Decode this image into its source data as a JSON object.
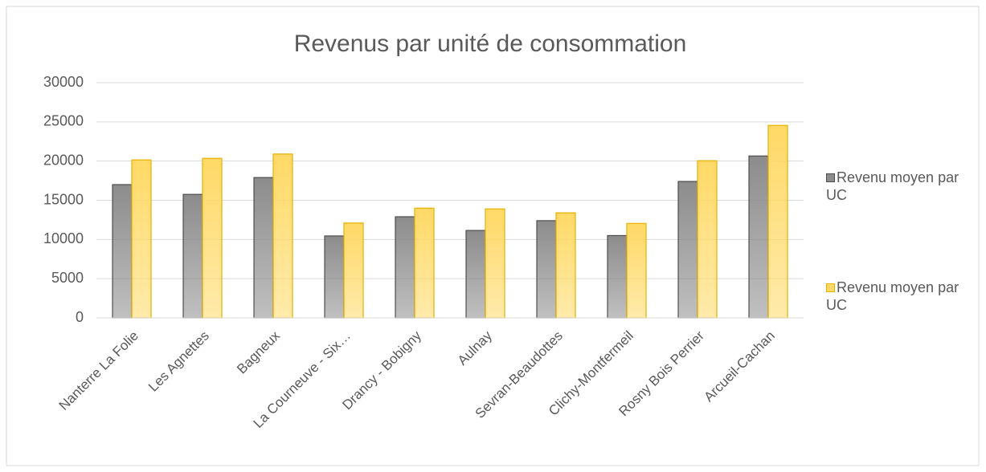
{
  "chart_data": {
    "type": "bar",
    "title": "Revenus par unité de consommation",
    "categories": [
      "Nanterre La Folie",
      "Les Agnettes",
      "Bagneux",
      "La Courneuve - Six…",
      "Drancy - Bobigny",
      "Aulnay",
      "Sevran-Beaudottes",
      "Clichy-Montfermeil",
      "Rosny Bois Perrier",
      "Arcueil-Cachan"
    ],
    "series": [
      {
        "name": "Revenu moyen par UC",
        "color": "#8c8c8c",
        "edgecolor": "#4d4d4d",
        "values": [
          17000,
          15750,
          17900,
          10450,
          12900,
          11150,
          12400,
          10500,
          17400,
          20650
        ]
      },
      {
        "name": "Revenu moyen par UC",
        "color": "#ffd966",
        "edgecolor": "#e6b000",
        "values": [
          20150,
          20350,
          20900,
          12100,
          14000,
          13900,
          13400,
          12050,
          20050,
          24550
        ]
      }
    ],
    "ylim": [
      0,
      30000
    ],
    "yticks": [
      0,
      5000,
      10000,
      15000,
      20000,
      25000,
      30000
    ],
    "grid": true,
    "legend": "right"
  }
}
